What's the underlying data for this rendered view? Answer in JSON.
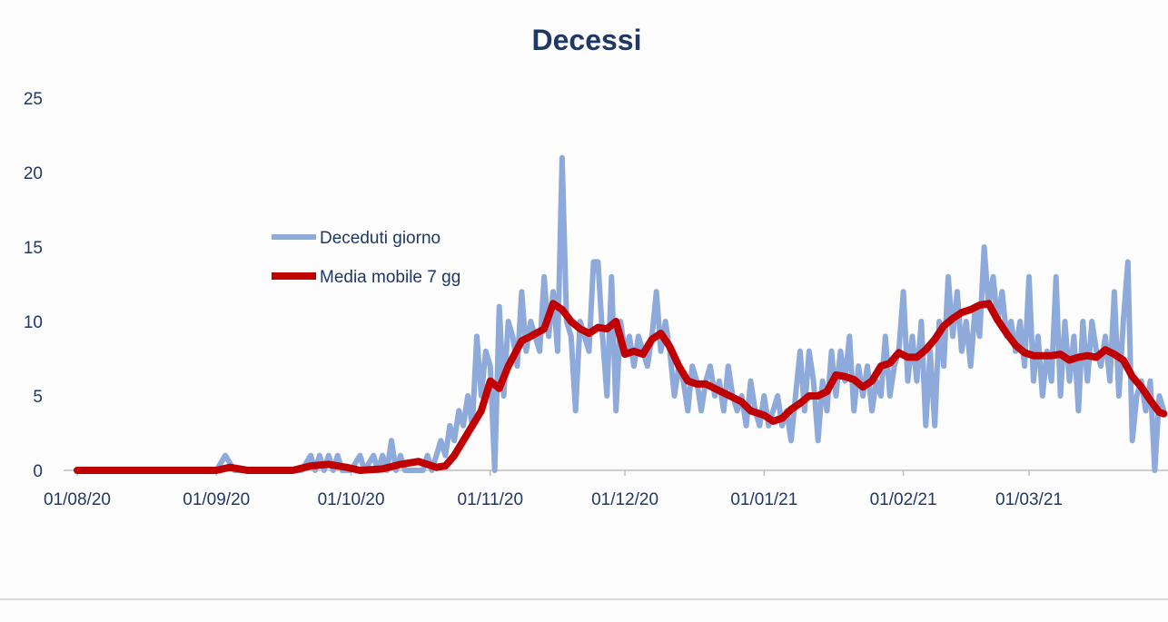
{
  "chart_data": {
    "type": "line",
    "title": "Decessi",
    "xlabel": "",
    "ylabel": "",
    "x_range": [
      "01/08/20",
      "31/03/21"
    ],
    "ylim": [
      0,
      25
    ],
    "y_ticks": [
      0,
      5,
      10,
      15,
      20,
      25
    ],
    "x_ticks": [
      "01/08/20",
      "01/09/20",
      "01/10/20",
      "01/11/20",
      "01/12/20",
      "01/01/21",
      "01/02/21",
      "01/03/21"
    ],
    "grid": false,
    "legend_position": "upper-left",
    "series": [
      {
        "name": "Deceduti giorno",
        "color": "#8eaadb",
        "points": [
          [
            "01/08/20",
            0
          ],
          [
            "08/08/20",
            0
          ],
          [
            "15/08/20",
            0
          ],
          [
            "22/08/20",
            0
          ],
          [
            "29/08/20",
            0
          ],
          [
            "01/09/20",
            0
          ],
          [
            "03/09/20",
            1
          ],
          [
            "05/09/20",
            0
          ],
          [
            "10/09/20",
            0
          ],
          [
            "15/09/20",
            0
          ],
          [
            "20/09/20",
            0
          ],
          [
            "22/09/20",
            1
          ],
          [
            "23/09/20",
            0
          ],
          [
            "24/09/20",
            1
          ],
          [
            "25/09/20",
            0
          ],
          [
            "26/09/20",
            1
          ],
          [
            "27/09/20",
            0
          ],
          [
            "28/09/20",
            1
          ],
          [
            "29/09/20",
            0
          ],
          [
            "01/10/20",
            0
          ],
          [
            "03/10/20",
            1
          ],
          [
            "04/10/20",
            0
          ],
          [
            "06/10/20",
            1
          ],
          [
            "07/10/20",
            0
          ],
          [
            "08/10/20",
            1
          ],
          [
            "09/10/20",
            0
          ],
          [
            "10/10/20",
            2
          ],
          [
            "11/10/20",
            0
          ],
          [
            "12/10/20",
            1
          ],
          [
            "13/10/20",
            0
          ],
          [
            "15/10/20",
            0
          ],
          [
            "17/10/20",
            0
          ],
          [
            "18/10/20",
            1
          ],
          [
            "19/10/20",
            0
          ],
          [
            "21/10/20",
            2
          ],
          [
            "22/10/20",
            1
          ],
          [
            "23/10/20",
            3
          ],
          [
            "24/10/20",
            2
          ],
          [
            "25/10/20",
            4
          ],
          [
            "26/10/20",
            3
          ],
          [
            "27/10/20",
            5
          ],
          [
            "28/10/20",
            3
          ],
          [
            "29/10/20",
            9
          ],
          [
            "30/10/20",
            5
          ],
          [
            "31/10/20",
            8
          ],
          [
            "01/11/20",
            7
          ],
          [
            "02/11/20",
            0
          ],
          [
            "03/11/20",
            11
          ],
          [
            "04/11/20",
            5
          ],
          [
            "05/11/20",
            10
          ],
          [
            "06/11/20",
            9
          ],
          [
            "07/11/20",
            7
          ],
          [
            "08/11/20",
            12
          ],
          [
            "09/11/20",
            8
          ],
          [
            "10/11/20",
            10
          ],
          [
            "11/11/20",
            9
          ],
          [
            "12/11/20",
            8
          ],
          [
            "13/11/20",
            13
          ],
          [
            "14/11/20",
            9
          ],
          [
            "15/11/20",
            12
          ],
          [
            "16/11/20",
            8
          ],
          [
            "17/11/20",
            21
          ],
          [
            "18/11/20",
            10
          ],
          [
            "19/11/20",
            9
          ],
          [
            "20/11/20",
            4
          ],
          [
            "21/11/20",
            10
          ],
          [
            "22/11/20",
            9
          ],
          [
            "23/11/20",
            8
          ],
          [
            "24/11/20",
            14
          ],
          [
            "25/11/20",
            14
          ],
          [
            "26/11/20",
            9
          ],
          [
            "27/11/20",
            5
          ],
          [
            "28/11/20",
            13
          ],
          [
            "29/11/20",
            4
          ],
          [
            "30/11/20",
            10
          ],
          [
            "01/12/20",
            8
          ],
          [
            "02/12/20",
            9
          ],
          [
            "03/12/20",
            7
          ],
          [
            "04/12/20",
            9
          ],
          [
            "05/12/20",
            8
          ],
          [
            "06/12/20",
            7
          ],
          [
            "07/12/20",
            9
          ],
          [
            "08/12/20",
            12
          ],
          [
            "09/12/20",
            8
          ],
          [
            "10/12/20",
            10
          ],
          [
            "11/12/20",
            8
          ],
          [
            "12/12/20",
            5
          ],
          [
            "13/12/20",
            7
          ],
          [
            "14/12/20",
            6
          ],
          [
            "15/12/20",
            4
          ],
          [
            "16/12/20",
            7
          ],
          [
            "17/12/20",
            6
          ],
          [
            "18/12/20",
            4
          ],
          [
            "19/12/20",
            6
          ],
          [
            "20/12/20",
            7
          ],
          [
            "21/12/20",
            5
          ],
          [
            "22/12/20",
            6
          ],
          [
            "23/12/20",
            4
          ],
          [
            "24/12/20",
            7
          ],
          [
            "25/12/20",
            5
          ],
          [
            "26/12/20",
            4
          ],
          [
            "27/12/20",
            5
          ],
          [
            "28/12/20",
            3
          ],
          [
            "29/12/20",
            6
          ],
          [
            "30/12/20",
            4
          ],
          [
            "31/12/20",
            3
          ],
          [
            "01/01/21",
            5
          ],
          [
            "02/01/21",
            3
          ],
          [
            "03/01/21",
            4
          ],
          [
            "04/01/21",
            5
          ],
          [
            "05/01/21",
            3
          ],
          [
            "06/01/21",
            4
          ],
          [
            "07/01/21",
            2
          ],
          [
            "08/01/21",
            5
          ],
          [
            "09/01/21",
            8
          ],
          [
            "10/01/21",
            4
          ],
          [
            "11/01/21",
            8
          ],
          [
            "12/01/21",
            6
          ],
          [
            "13/01/21",
            2
          ],
          [
            "14/01/21",
            6
          ],
          [
            "15/01/21",
            4
          ],
          [
            "16/01/21",
            8
          ],
          [
            "17/01/21",
            5
          ],
          [
            "18/01/21",
            8
          ],
          [
            "19/01/21",
            6
          ],
          [
            "20/01/21",
            9
          ],
          [
            "21/01/21",
            4
          ],
          [
            "22/01/21",
            7
          ],
          [
            "23/01/21",
            5
          ],
          [
            "24/01/21",
            7
          ],
          [
            "25/01/21",
            4
          ],
          [
            "26/01/21",
            6
          ],
          [
            "27/01/21",
            5
          ],
          [
            "28/01/21",
            9
          ],
          [
            "29/01/21",
            5
          ],
          [
            "30/01/21",
            7
          ],
          [
            "31/01/21",
            8
          ],
          [
            "01/02/21",
            12
          ],
          [
            "02/02/21",
            6
          ],
          [
            "03/02/21",
            9
          ],
          [
            "04/02/21",
            6
          ],
          [
            "05/02/21",
            10
          ],
          [
            "06/02/21",
            3
          ],
          [
            "07/02/21",
            8
          ],
          [
            "08/02/21",
            3
          ],
          [
            "09/02/21",
            10
          ],
          [
            "10/02/21",
            7
          ],
          [
            "11/02/21",
            13
          ],
          [
            "12/02/21",
            9
          ],
          [
            "13/02/21",
            12
          ],
          [
            "14/02/21",
            8
          ],
          [
            "15/02/21",
            10
          ],
          [
            "16/02/21",
            7
          ],
          [
            "17/02/21",
            11
          ],
          [
            "18/02/21",
            9
          ],
          [
            "19/02/21",
            15
          ],
          [
            "20/02/21",
            11
          ],
          [
            "21/02/21",
            13
          ],
          [
            "22/02/21",
            10
          ],
          [
            "23/02/21",
            12
          ],
          [
            "24/02/21",
            9
          ],
          [
            "25/02/21",
            10
          ],
          [
            "26/02/21",
            8
          ],
          [
            "27/02/21",
            10
          ],
          [
            "28/02/21",
            7
          ],
          [
            "01/03/21",
            13
          ],
          [
            "02/03/21",
            6
          ],
          [
            "03/03/21",
            9
          ],
          [
            "04/03/21",
            5
          ],
          [
            "05/03/21",
            8
          ],
          [
            "06/03/21",
            6
          ],
          [
            "07/03/21",
            13
          ],
          [
            "08/03/21",
            5
          ],
          [
            "09/03/21",
            10
          ],
          [
            "10/03/21",
            6
          ],
          [
            "11/03/21",
            9
          ],
          [
            "12/03/21",
            4
          ],
          [
            "13/03/21",
            10
          ],
          [
            "14/03/21",
            6
          ],
          [
            "15/03/21",
            10
          ],
          [
            "16/03/21",
            8
          ],
          [
            "17/03/21",
            7
          ],
          [
            "18/03/21",
            9
          ],
          [
            "19/03/21",
            6
          ],
          [
            "20/03/21",
            12
          ],
          [
            "21/03/21",
            5
          ],
          [
            "22/03/21",
            10
          ],
          [
            "23/03/21",
            14
          ],
          [
            "24/03/21",
            2
          ],
          [
            "25/03/21",
            5
          ],
          [
            "26/03/21",
            6
          ],
          [
            "27/03/21",
            4
          ],
          [
            "28/03/21",
            6
          ],
          [
            "29/03/21",
            0
          ],
          [
            "30/03/21",
            5
          ],
          [
            "31/03/21",
            4
          ]
        ]
      },
      {
        "name": "Media mobile 7 gg",
        "color": "#c00000",
        "points": [
          [
            "01/08/20",
            0
          ],
          [
            "15/08/20",
            0
          ],
          [
            "01/09/20",
            0
          ],
          [
            "04/09/20",
            0.2
          ],
          [
            "08/09/20",
            0
          ],
          [
            "18/09/20",
            0
          ],
          [
            "22/09/20",
            0.3
          ],
          [
            "26/09/20",
            0.4
          ],
          [
            "30/09/20",
            0.2
          ],
          [
            "03/10/20",
            0
          ],
          [
            "08/10/20",
            0.1
          ],
          [
            "12/10/20",
            0.4
          ],
          [
            "16/10/20",
            0.6
          ],
          [
            "20/10/20",
            0.2
          ],
          [
            "22/10/20",
            0.3
          ],
          [
            "24/10/20",
            1
          ],
          [
            "26/10/20",
            2
          ],
          [
            "28/10/20",
            3
          ],
          [
            "30/10/20",
            4
          ],
          [
            "01/11/20",
            6
          ],
          [
            "03/11/20",
            5.5
          ],
          [
            "05/11/20",
            7
          ],
          [
            "08/11/20",
            8.7
          ],
          [
            "10/11/20",
            9
          ],
          [
            "13/11/20",
            9.5
          ],
          [
            "15/11/20",
            11.2
          ],
          [
            "17/11/20",
            10.8
          ],
          [
            "19/11/20",
            10
          ],
          [
            "21/11/20",
            9.5
          ],
          [
            "23/11/20",
            9.2
          ],
          [
            "25/11/20",
            9.6
          ],
          [
            "27/11/20",
            9.5
          ],
          [
            "29/11/20",
            10
          ],
          [
            "01/12/20",
            7.8
          ],
          [
            "03/12/20",
            8
          ],
          [
            "05/12/20",
            7.8
          ],
          [
            "07/12/20",
            8.8
          ],
          [
            "09/12/20",
            9.2
          ],
          [
            "11/12/20",
            8.3
          ],
          [
            "13/12/20",
            7
          ],
          [
            "15/12/20",
            6
          ],
          [
            "17/12/20",
            5.8
          ],
          [
            "19/12/20",
            5.8
          ],
          [
            "21/12/20",
            5.5
          ],
          [
            "23/12/20",
            5.2
          ],
          [
            "25/12/20",
            4.9
          ],
          [
            "27/12/20",
            4.6
          ],
          [
            "29/12/20",
            4
          ],
          [
            "01/01/21",
            3.7
          ],
          [
            "03/01/21",
            3.3
          ],
          [
            "05/01/21",
            3.5
          ],
          [
            "07/01/21",
            4.1
          ],
          [
            "09/01/21",
            4.5
          ],
          [
            "11/01/21",
            5
          ],
          [
            "13/01/21",
            5
          ],
          [
            "15/01/21",
            5.3
          ],
          [
            "17/01/21",
            6.4
          ],
          [
            "19/01/21",
            6.3
          ],
          [
            "21/01/21",
            6.1
          ],
          [
            "23/01/21",
            5.6
          ],
          [
            "25/01/21",
            6
          ],
          [
            "27/01/21",
            7
          ],
          [
            "29/01/21",
            7.2
          ],
          [
            "31/01/21",
            7.9
          ],
          [
            "02/02/21",
            7.6
          ],
          [
            "04/02/21",
            7.6
          ],
          [
            "06/02/21",
            8.1
          ],
          [
            "08/02/21",
            8.8
          ],
          [
            "10/02/21",
            9.7
          ],
          [
            "12/02/21",
            10.2
          ],
          [
            "14/02/21",
            10.6
          ],
          [
            "16/02/21",
            10.8
          ],
          [
            "18/02/21",
            11.1
          ],
          [
            "20/02/21",
            11.2
          ],
          [
            "22/02/21",
            10.1
          ],
          [
            "24/02/21",
            9.2
          ],
          [
            "26/02/21",
            8.4
          ],
          [
            "28/02/21",
            7.9
          ],
          [
            "02/03/21",
            7.7
          ],
          [
            "04/03/21",
            7.7
          ],
          [
            "06/03/21",
            7.7
          ],
          [
            "08/03/21",
            7.8
          ],
          [
            "10/03/21",
            7.4
          ],
          [
            "12/03/21",
            7.6
          ],
          [
            "14/03/21",
            7.7
          ],
          [
            "16/03/21",
            7.6
          ],
          [
            "18/03/21",
            8.1
          ],
          [
            "20/03/21",
            7.8
          ],
          [
            "22/03/21",
            7.4
          ],
          [
            "24/03/21",
            6.3
          ],
          [
            "26/03/21",
            5.6
          ],
          [
            "28/03/21",
            4.7
          ],
          [
            "30/03/21",
            3.9
          ],
          [
            "31/03/21",
            3.8
          ]
        ]
      }
    ]
  }
}
